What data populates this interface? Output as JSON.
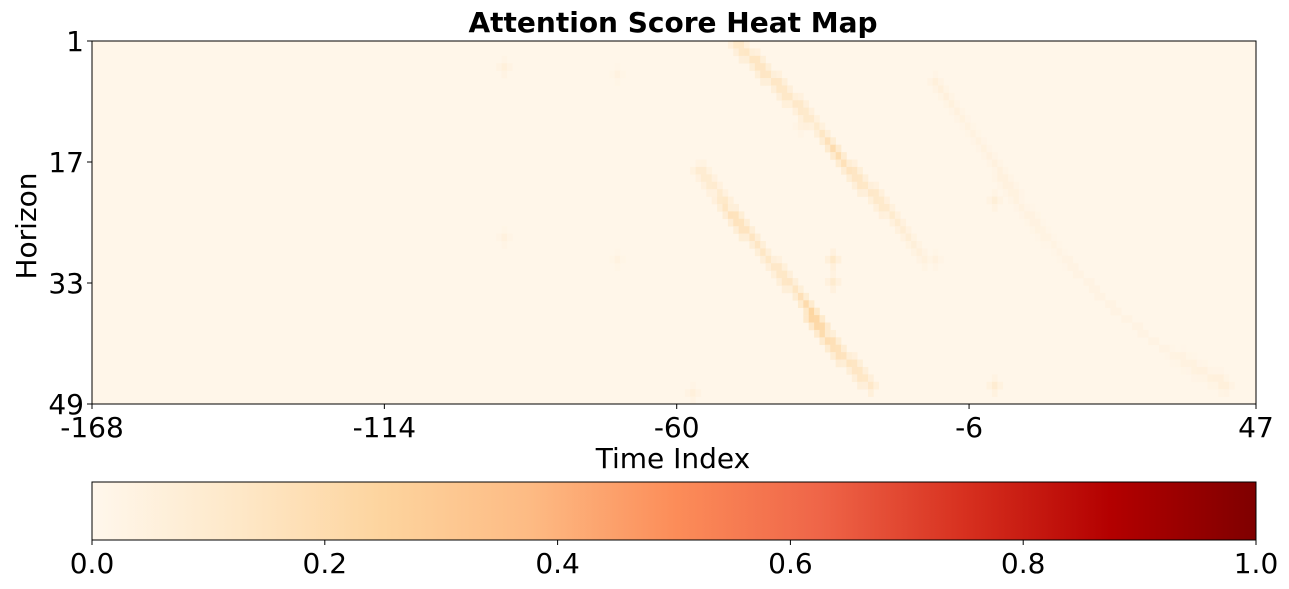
{
  "chart_data": {
    "type": "heatmap",
    "title": "Attention Score Heat Map",
    "xlabel": "Time Index",
    "ylabel": "Horizon",
    "x_range": [
      -168,
      47
    ],
    "y_range": [
      1,
      49
    ],
    "x_ticks": [
      "-168",
      "-114",
      "-60",
      "-6",
      "47"
    ],
    "y_ticks": [
      "1",
      "17",
      "33",
      "49"
    ],
    "colormap": "OrRd",
    "colorbar": {
      "range": [
        0.0,
        1.0
      ],
      "ticks": [
        "0.0",
        "0.2",
        "0.4",
        "0.6",
        "0.8",
        "1.0"
      ],
      "colors": [
        "#fff7ec",
        "#fee8c8",
        "#fdd49e",
        "#fdbb84",
        "#fc8d59",
        "#ef6548",
        "#d7301f",
        "#b30000",
        "#7f0000"
      ]
    },
    "background_value": 0.01,
    "highlights": [
      {
        "name": "main-diagonal",
        "points": [
          [
            -49,
            1,
            0.12
          ],
          [
            -46,
            3,
            0.14
          ],
          [
            -42,
            6,
            0.13
          ],
          [
            -38,
            9,
            0.12
          ],
          [
            -34,
            12,
            0.1
          ],
          [
            -31,
            15,
            0.2
          ],
          [
            -28,
            18,
            0.14
          ],
          [
            -24,
            21,
            0.12
          ],
          [
            -20,
            24,
            0.1
          ],
          [
            -17,
            27,
            0.07
          ],
          [
            -14,
            30,
            0.05
          ]
        ]
      },
      {
        "name": "second-diagonal",
        "points": [
          [
            -56,
            18,
            0.09
          ],
          [
            -52,
            21,
            0.1
          ],
          [
            -50,
            24,
            0.16
          ],
          [
            -46,
            27,
            0.14
          ],
          [
            -42,
            31,
            0.12
          ],
          [
            -38,
            34,
            0.14
          ],
          [
            -35,
            37,
            0.24
          ],
          [
            -32,
            41,
            0.18
          ],
          [
            -28,
            44,
            0.14
          ],
          [
            -24,
            47,
            0.12
          ]
        ]
      },
      {
        "name": "third-diagonal",
        "points": [
          [
            -12,
            6,
            0.06
          ],
          [
            -6,
            12,
            0.04
          ],
          [
            0,
            18,
            0.05
          ],
          [
            5,
            24,
            0.04
          ],
          [
            12,
            30,
            0.03
          ],
          [
            20,
            36,
            0.03
          ],
          [
            30,
            42,
            0.03
          ],
          [
            42,
            47,
            0.06
          ]
        ]
      },
      {
        "name": "isolated-spots",
        "points": [
          [
            -92,
            4,
            0.06
          ],
          [
            -92,
            27,
            0.05
          ],
          [
            -71,
            5,
            0.04
          ],
          [
            -71,
            30,
            0.04
          ],
          [
            -31,
            30,
            0.12
          ],
          [
            -31,
            33,
            0.1
          ],
          [
            -12,
            30,
            0.05
          ],
          [
            -1,
            22,
            0.07
          ],
          [
            -1,
            47,
            0.09
          ],
          [
            -57,
            48,
            0.06
          ],
          [
            -37,
            12,
            0.05
          ]
        ]
      }
    ]
  }
}
